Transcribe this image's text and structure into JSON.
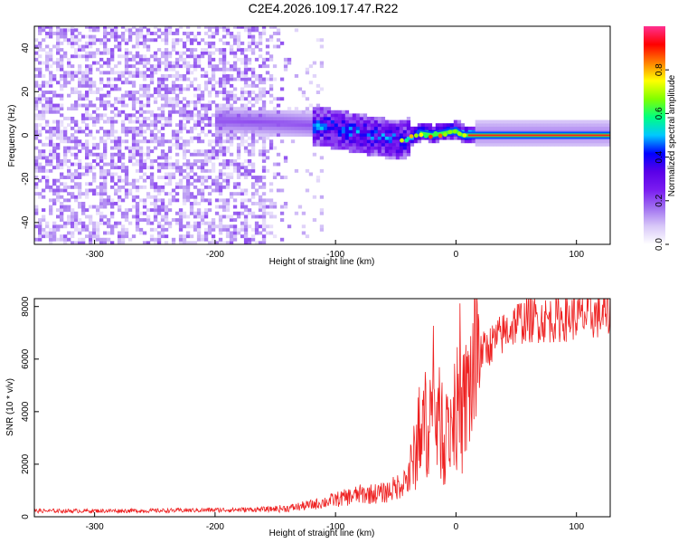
{
  "title": "C2E4.2026.109.17.47.R22",
  "colors": {
    "snr_line": "#ee2020",
    "ridge": "#ff1a1a",
    "axis": "#000000",
    "background": "#ffffff"
  },
  "colormap_stops": [
    "#ffffff",
    "#d8c8f8",
    "#a070f0",
    "#7a1cf0",
    "#5a00e8",
    "#0000ff",
    "#00c8ff",
    "#00ff80",
    "#80ff00",
    "#ffff00",
    "#ff8000",
    "#ff0000",
    "#ff3090"
  ],
  "chart_data": [
    {
      "type": "heatmap",
      "name": "spectrogram",
      "xlabel": "Height of straight line (km)",
      "ylabel": "Frequency (Hz)",
      "xlim": [
        -350,
        128
      ],
      "ylim": [
        -50,
        50
      ],
      "xticks": [
        -300,
        -200,
        -100,
        0,
        100
      ],
      "yticks": [
        -40,
        -20,
        0,
        20,
        40
      ],
      "xtick_labels": [
        "-300",
        "-200",
        "-100",
        "0",
        "100"
      ],
      "ytick_labels": [
        "-40",
        "-20",
        "0",
        "20",
        "40"
      ],
      "colorbar": {
        "label": "Normalized spectral amplitude",
        "range": [
          0,
          1
        ],
        "ticks": [
          0.0,
          0.2,
          0.4,
          0.6,
          0.8
        ],
        "tick_labels": [
          "0.0",
          "0.2",
          "0.4",
          "0.6",
          "0.8"
        ]
      },
      "regions": [
        {
          "name": "noise",
          "x_range": [
            -350,
            -135
          ],
          "freq_range": [
            -50,
            50
          ],
          "amplitude": 0.1
        },
        {
          "name": "transition",
          "x_range": [
            -135,
            -30
          ],
          "freq_range": [
            -12,
            15
          ],
          "amplitude": 0.4
        },
        {
          "name": "signal",
          "x_range": [
            -30,
            128
          ],
          "freq_center": 0,
          "amplitude": 0.95
        }
      ],
      "ridge": {
        "x": [
          -190,
          -150,
          -120,
          -100,
          -80,
          -60,
          -45,
          -30,
          -20,
          -10,
          0,
          5,
          15,
          60,
          128
        ],
        "freq": [
          6,
          5,
          4,
          2,
          0,
          -2,
          -3,
          1,
          0,
          1,
          2,
          0,
          0,
          0,
          0
        ]
      }
    },
    {
      "type": "line",
      "name": "snr",
      "xlabel": "Height of straight line (km)",
      "ylabel": "SNR (10 * v/v)",
      "xlim": [
        -350,
        128
      ],
      "ylim": [
        0,
        8300
      ],
      "xticks": [
        -300,
        -200,
        -100,
        0,
        100
      ],
      "yticks": [
        0,
        2000,
        4000,
        6000,
        8000
      ],
      "xtick_labels": [
        "-300",
        "-200",
        "-100",
        "0",
        "100"
      ],
      "ytick_labels": [
        "0",
        "2000",
        "4000",
        "6000",
        "8000"
      ],
      "series": [
        {
          "name": "SNR",
          "x": [
            -350,
            -250,
            -160,
            -140,
            -120,
            -100,
            -80,
            -60,
            -50,
            -40,
            -35,
            -30,
            -25,
            -20,
            -15,
            -10,
            -5,
            0,
            5,
            10,
            15,
            20,
            30,
            40,
            50,
            60,
            80,
            100,
            128
          ],
          "y": [
            220,
            230,
            280,
            320,
            450,
            650,
            850,
            900,
            1100,
            1500,
            2200,
            3000,
            3600,
            4000,
            3800,
            2800,
            3400,
            4200,
            3600,
            4800,
            5600,
            6200,
            6600,
            7000,
            7400,
            7500,
            7500,
            7600,
            7700
          ]
        }
      ]
    }
  ]
}
